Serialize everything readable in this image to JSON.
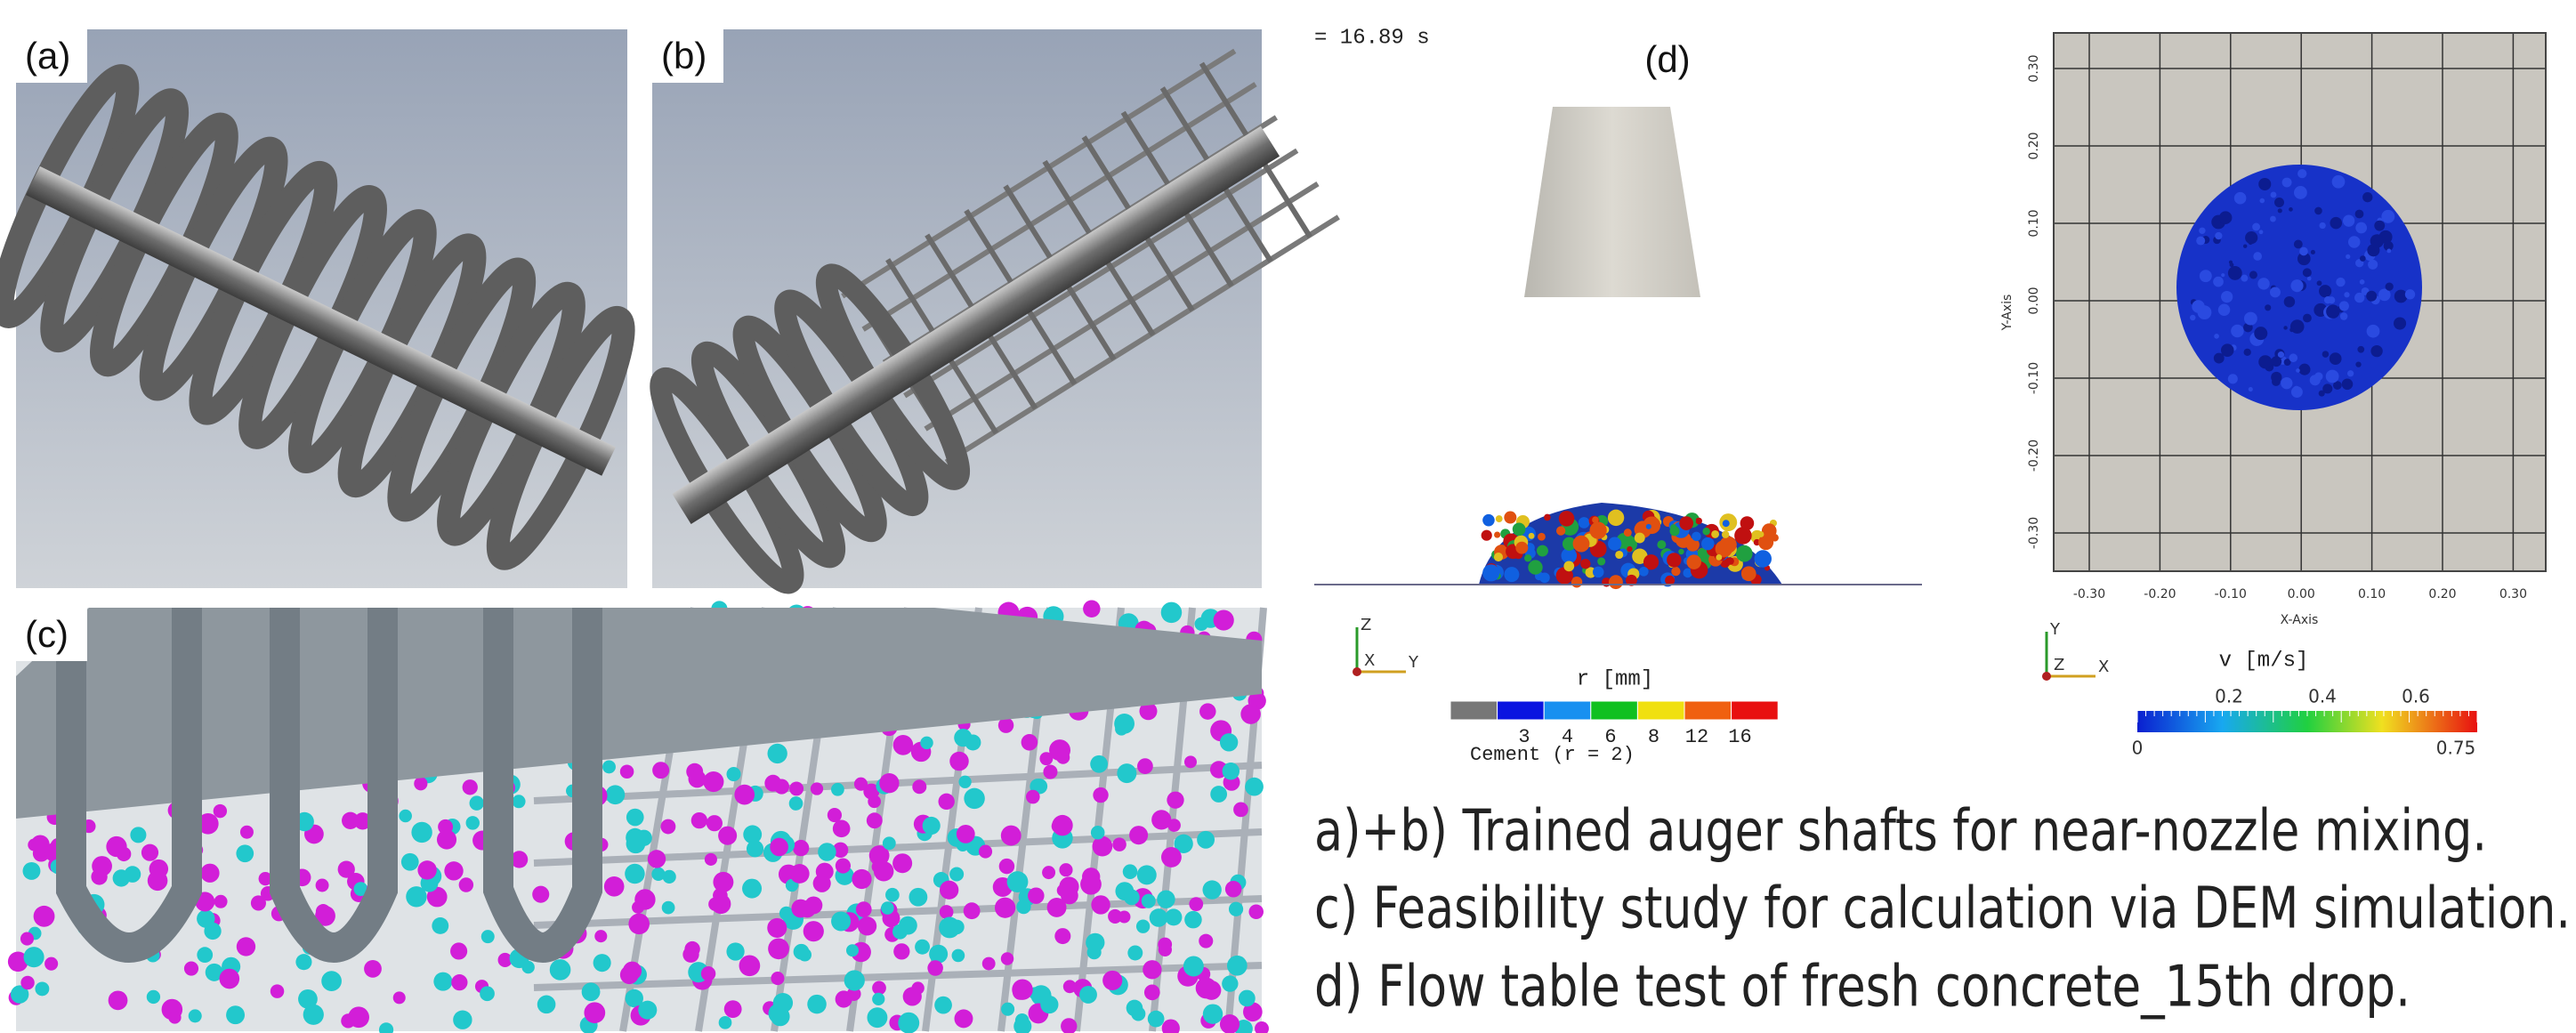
{
  "panels": {
    "a": {
      "label": "(a)"
    },
    "b": {
      "label": "(b)"
    },
    "c": {
      "label": "(c)"
    },
    "d": {
      "label": "(d)",
      "time": "= 16.89 s",
      "triad": [
        "Z",
        "X",
        "Y"
      ],
      "legend": {
        "title": "r [mm]",
        "ticks": [
          "3",
          "4",
          "6",
          "8",
          "12",
          "16"
        ],
        "note": "Cement (r = 2)"
      }
    },
    "top_view": {
      "x_label": "X-Axis",
      "y_label": "Y-Axis",
      "x_ticks": [
        "-0.30",
        "-0.20",
        "-0.10",
        "0.00",
        "0.10",
        "0.20",
        "0.30"
      ],
      "y_ticks": [
        "0.30",
        "0.20",
        "0.10",
        "0.00",
        "-0.10",
        "-0.20",
        "-0.30"
      ],
      "triad": [
        "Y",
        "Z",
        "X"
      ],
      "legend": {
        "title": "v [m/s]",
        "ticks": [
          "0.2",
          "0.4",
          "0.6"
        ],
        "min": "0",
        "max": "0.75"
      }
    }
  },
  "captions": [
    "a)+b)  Trained auger shafts for near-nozzle mixing.",
    "c) Feasibility study for calculation via DEM simulation.",
    "d) Flow table test of fresh concrete_15th drop."
  ]
}
